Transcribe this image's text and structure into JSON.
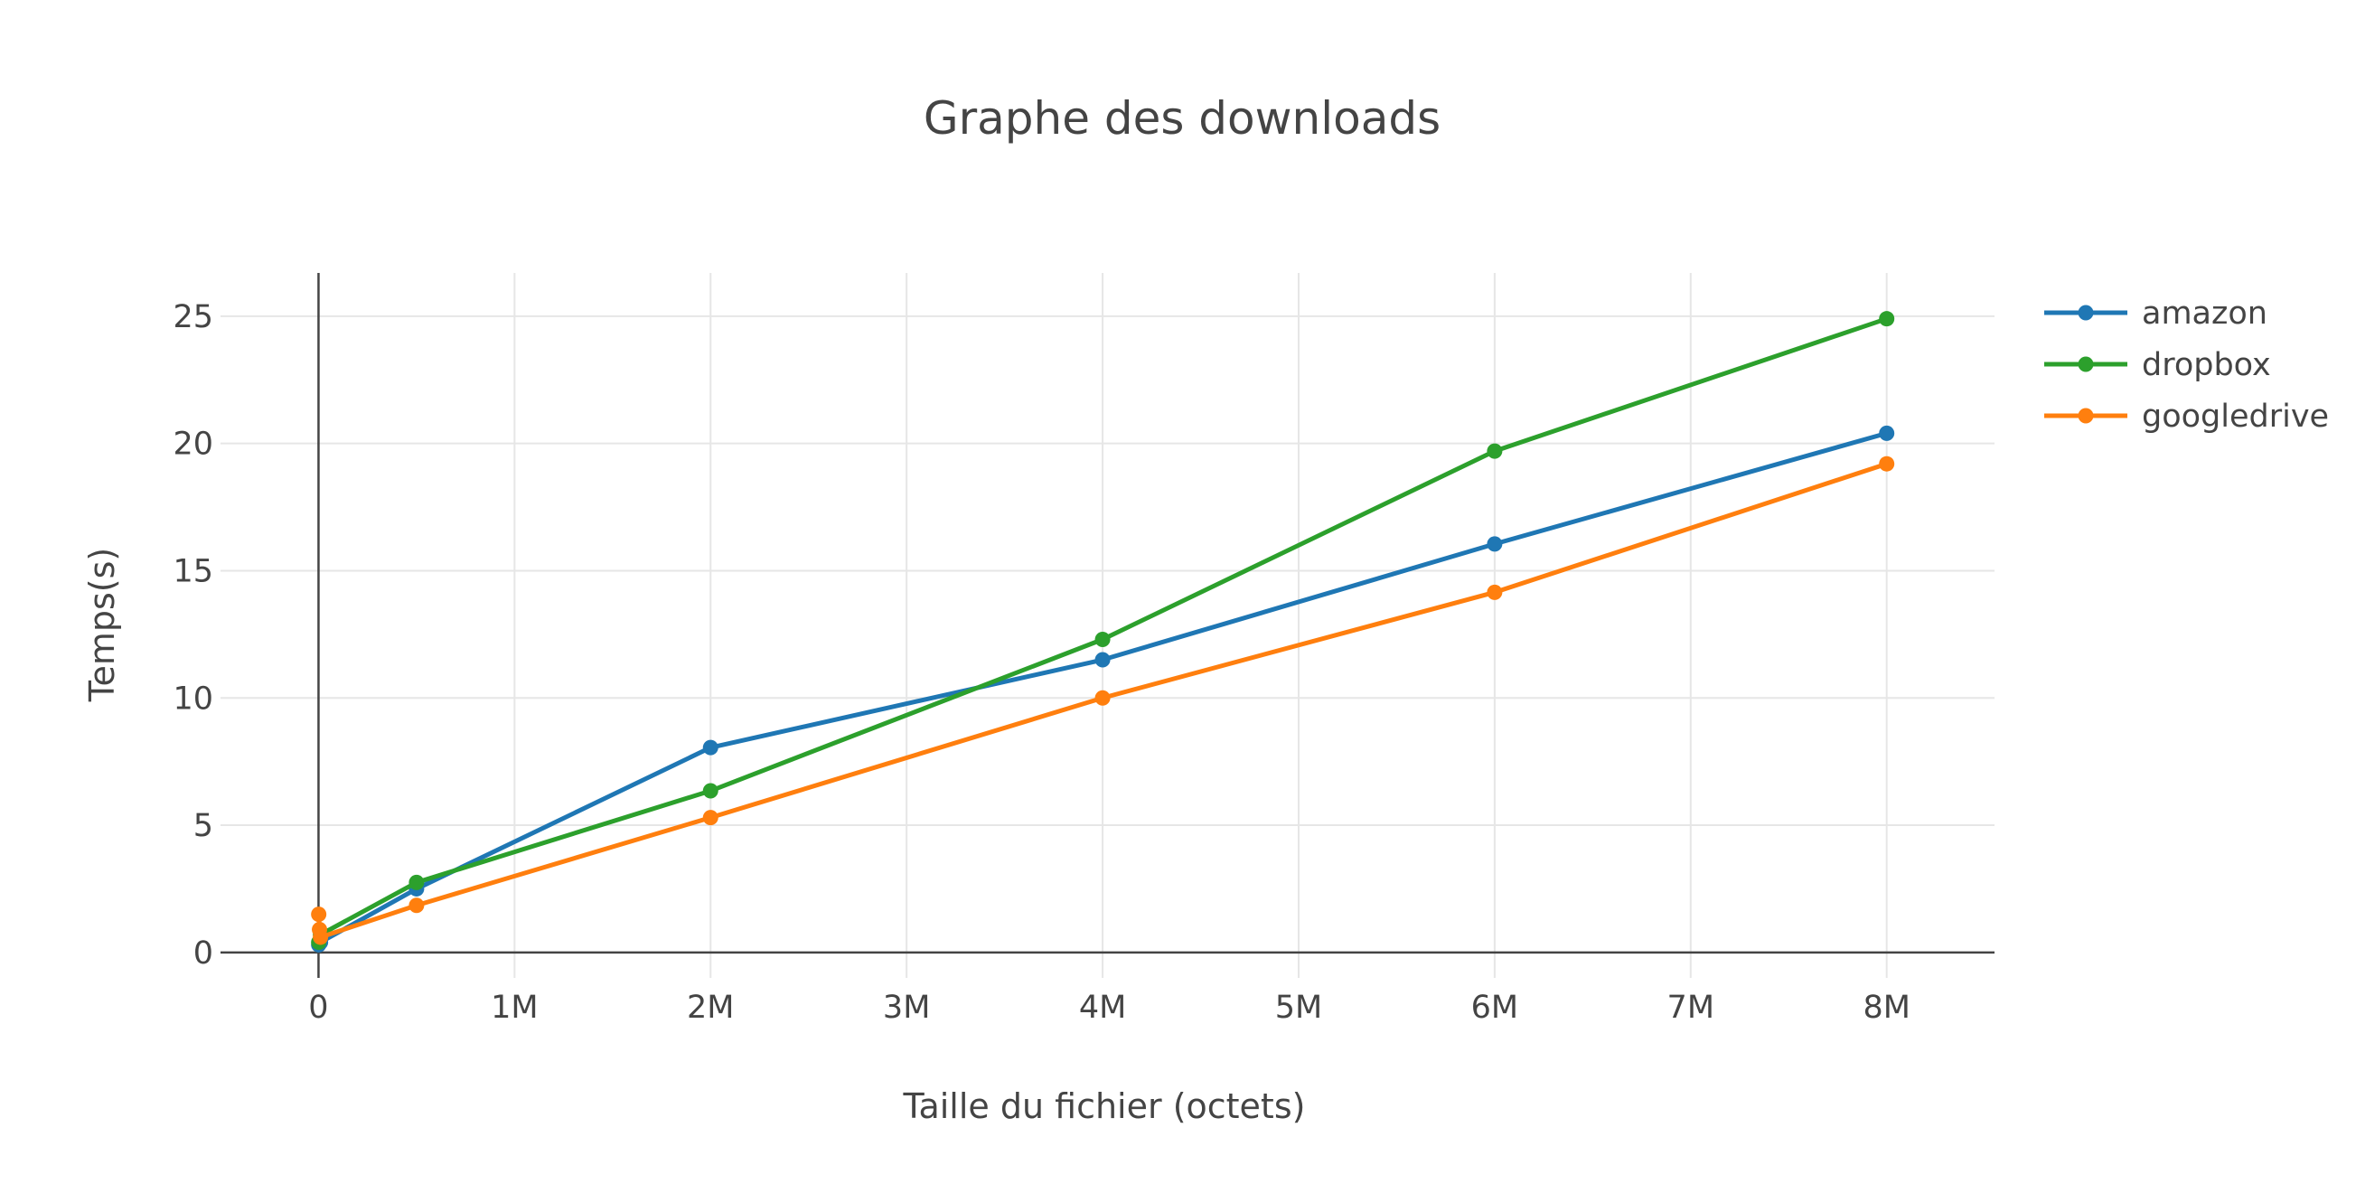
{
  "chart_data": {
    "type": "line",
    "title": "Graphe des downloads",
    "xlabel": "Taille du fichier (octets)",
    "ylabel": "Temps(s)",
    "x_tick_values": [
      0,
      1000000,
      2000000,
      3000000,
      4000000,
      5000000,
      6000000,
      7000000,
      8000000
    ],
    "x_tick_labels": [
      "0",
      "1M",
      "2M",
      "3M",
      "4M",
      "5M",
      "6M",
      "7M",
      "8M"
    ],
    "y_tick_values": [
      0,
      5,
      10,
      15,
      20,
      25
    ],
    "y_tick_labels": [
      "0",
      "5",
      "10",
      "15",
      "20",
      "25"
    ],
    "xlim": [
      -500000,
      8550000
    ],
    "ylim": [
      -1,
      26.7
    ],
    "grid": true,
    "legend_position": "top-right",
    "series": [
      {
        "name": "amazon",
        "color": "#1f77b4",
        "x": [
          1000,
          10000,
          500000,
          2000000,
          4000000,
          6000000,
          8000000
        ],
        "y": [
          0.3,
          0.4,
          2.5,
          8.05,
          11.5,
          16.05,
          20.4
        ]
      },
      {
        "name": "dropbox",
        "color": "#2ca02c",
        "x": [
          1000,
          10000,
          500000,
          2000000,
          4000000,
          6000000,
          8000000
        ],
        "y": [
          0.4,
          0.7,
          2.75,
          6.35,
          12.3,
          19.7,
          24.9
        ]
      },
      {
        "name": "googledrive",
        "color": "#ff7f0e",
        "x": [
          1000,
          5000,
          10000,
          500000,
          2000000,
          4000000,
          6000000,
          8000000
        ],
        "y": [
          1.5,
          0.9,
          0.6,
          1.85,
          5.3,
          10.0,
          14.15,
          19.2
        ]
      }
    ]
  }
}
